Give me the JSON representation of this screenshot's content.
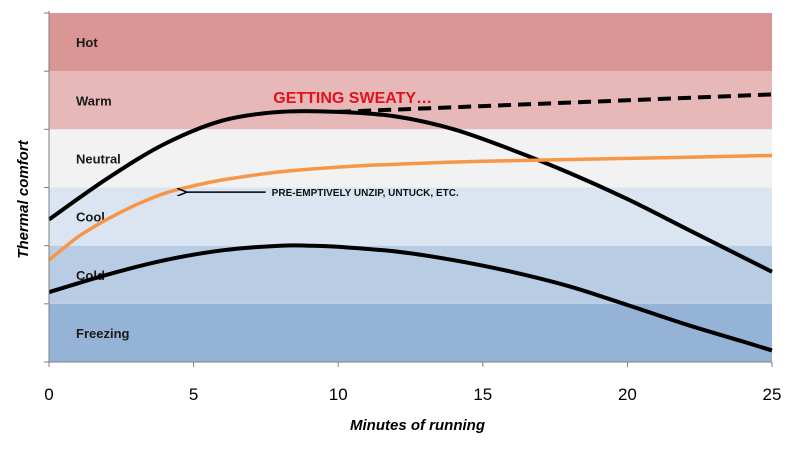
{
  "chart_data": {
    "type": "line",
    "xlabel": "Minutes of running",
    "ylabel": "Thermal comfort",
    "xlim": [
      0,
      25
    ],
    "ylim": [
      0,
      6
    ],
    "x_ticks": [
      "0",
      "5",
      "10",
      "15",
      "20",
      "25"
    ],
    "grid": false,
    "bands": [
      {
        "label": "Freezing",
        "range": [
          0,
          1
        ],
        "color": "#95b3d7"
      },
      {
        "label": "Cold",
        "range": [
          1,
          2
        ],
        "color": "#b8cce4"
      },
      {
        "label": "Cool",
        "range": [
          2,
          3
        ],
        "color": "#dbe5f1"
      },
      {
        "label": "Neutral",
        "range": [
          3,
          4
        ],
        "color": "#f2f2f2"
      },
      {
        "label": "Warm",
        "range": [
          4,
          5
        ],
        "color": "#e6b9b8"
      },
      {
        "label": "Hot",
        "range": [
          5,
          6
        ],
        "color": "#d99694"
      }
    ],
    "series": [
      {
        "color": "#000000",
        "style": "solid",
        "x": [
          0,
          2,
          4,
          6,
          8,
          10,
          12,
          14,
          16,
          18,
          20,
          22,
          24,
          25
        ],
        "y": [
          2.45,
          3.15,
          3.75,
          4.15,
          4.3,
          4.3,
          4.22,
          4.0,
          3.65,
          3.25,
          2.8,
          2.3,
          1.8,
          1.55
        ]
      },
      {
        "color": "#000000",
        "style": "dashed",
        "x": [
          10,
          15,
          20,
          25
        ],
        "y": [
          4.3,
          4.4,
          4.5,
          4.6
        ]
      },
      {
        "color": "#f79646",
        "style": "solid",
        "x": [
          0,
          1,
          2,
          3,
          4,
          5,
          6,
          8,
          10,
          12,
          15,
          20,
          25
        ],
        "y": [
          1.75,
          2.15,
          2.45,
          2.7,
          2.9,
          3.03,
          3.13,
          3.27,
          3.35,
          3.4,
          3.45,
          3.5,
          3.55
        ]
      },
      {
        "color": "#000000",
        "style": "solid",
        "x": [
          0,
          2,
          4,
          6,
          8,
          9,
          10,
          12,
          14,
          16,
          18,
          20,
          22,
          24,
          25
        ],
        "y": [
          1.2,
          1.5,
          1.75,
          1.92,
          2.0,
          2.0,
          1.98,
          1.9,
          1.75,
          1.55,
          1.3,
          0.98,
          0.65,
          0.35,
          0.2
        ]
      }
    ],
    "annotations": [
      {
        "text": "GETTING SWEATY…",
        "x": 10.5,
        "y": 4.45,
        "color": "#e3101d"
      },
      {
        "text": "PRE-EMPTIVELY UNZIP, UNTUCK, ETC.",
        "x": 7.7,
        "y": 2.92,
        "arrow_to": [
          4.7,
          2.92
        ]
      }
    ]
  }
}
